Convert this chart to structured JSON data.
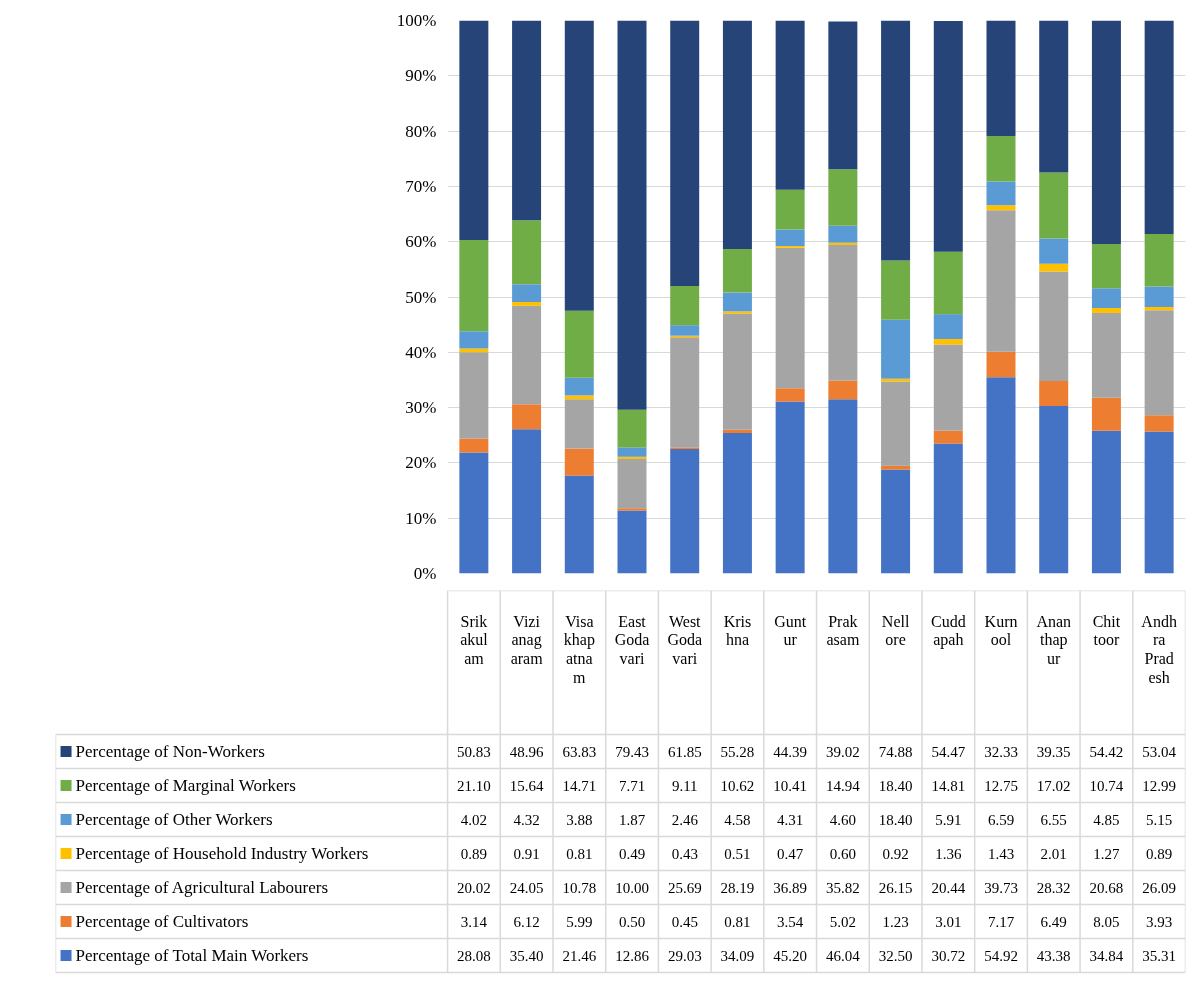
{
  "chart_data": {
    "type": "bar",
    "stacked": true,
    "grid": "y",
    "legend": "bottom",
    "categories": [
      "Srikakulam",
      "Vizianagaram",
      "Visakhapatnam",
      "East Godavari",
      "West Godavari",
      "Krishna",
      "Guntur",
      "Prakasam",
      "Nellore",
      "Cuddapah",
      "Kurnool",
      "Ananthapur",
      "Chittoor",
      "Andhra Pradesh"
    ],
    "ylim": [
      0,
      100
    ],
    "yticks": [
      {
        "value": 0,
        "label": "0%"
      },
      {
        "value": 10,
        "label": "10%"
      },
      {
        "value": 20,
        "label": "20%"
      },
      {
        "value": 30,
        "label": "30%"
      },
      {
        "value": 40,
        "label": "40%"
      },
      {
        "value": 50,
        "label": "50%"
      },
      {
        "value": 60,
        "label": "60%"
      },
      {
        "value": 70,
        "label": "70%"
      },
      {
        "value": 80,
        "label": "80%"
      },
      {
        "value": 90,
        "label": "90%"
      },
      {
        "value": 100,
        "label": "100%"
      }
    ],
    "series": [
      {
        "name": "Percentage of Total Main Workers",
        "color": "#4472c4",
        "values": [
          21.9,
          26.1,
          17.7,
          11.4,
          22.5,
          25.4,
          31.1,
          31.5,
          18.8,
          23.5,
          35.5,
          30.3,
          25.8,
          25.7
        ]
      },
      {
        "name": "Percentage of Cultivators",
        "color": "#ed7d31",
        "values": [
          2.5,
          4.5,
          4.9,
          0.4,
          0.3,
          0.6,
          2.4,
          3.4,
          0.7,
          2.3,
          4.6,
          4.5,
          6.0,
          2.9
        ]
      },
      {
        "name": "Percentage of Agricultural Labourers",
        "color": "#a5a5a5",
        "values": [
          15.6,
          17.8,
          8.9,
          8.9,
          19.9,
          21.0,
          25.4,
          24.5,
          15.2,
          15.6,
          25.6,
          19.8,
          15.3,
          19.0
        ]
      },
      {
        "name": "Percentage of Household Industry Workers",
        "color": "#ffc000",
        "values": [
          0.7,
          0.7,
          0.7,
          0.4,
          0.3,
          0.4,
          0.3,
          0.4,
          0.5,
          1.0,
          0.9,
          1.4,
          0.9,
          0.6
        ]
      },
      {
        "name": "Percentage of Other Workers",
        "color": "#5b9bd5",
        "values": [
          3.1,
          3.2,
          3.2,
          1.7,
          1.9,
          3.4,
          3.0,
          3.1,
          10.7,
          4.5,
          4.3,
          4.6,
          3.6,
          3.7
        ]
      },
      {
        "name": "Percentage of Marginal Workers",
        "color": "#70ad47",
        "values": [
          16.5,
          11.6,
          12.1,
          6.8,
          7.1,
          7.9,
          7.2,
          10.2,
          10.7,
          11.3,
          8.2,
          11.9,
          8.0,
          9.5
        ]
      },
      {
        "name": "Percentage of Non-Workers",
        "color": "#264478",
        "values": [
          39.7,
          36.1,
          52.5,
          70.4,
          48.0,
          41.3,
          30.6,
          26.7,
          43.4,
          41.7,
          20.9,
          27.5,
          40.4,
          38.6
        ]
      }
    ],
    "annotations": [
      "50.83",
      "48.96",
      "63.83",
      "79.43",
      "61.85",
      "55.28",
      "44.39",
      "39.02",
      "74.88",
      "54.47",
      "32.33",
      "39.35",
      "54.42",
      "53.04",
      "21.10",
      "15.64",
      "14.71",
      "7.71",
      "9.11",
      "10.62",
      "10.41",
      "14.94",
      "18.40",
      "14.81",
      "12.75",
      "17.02",
      "10.74",
      "12.99",
      "4.02",
      "4.32",
      "3.88",
      "1.87",
      "2.46",
      "4.58",
      "4.31",
      "4.60",
      "18.40",
      "5.91",
      "6.59",
      "6.55",
      "4.85",
      "5.15",
      "0.89",
      "0.91",
      "0.81",
      "0.49",
      "0.43",
      "0.51",
      "0.47",
      "0.60",
      "0.92",
      "1.36",
      "1.43",
      "2.01",
      "1.27",
      "0.89",
      "20.02",
      "24.05",
      "10.78",
      "10.00",
      "25.69",
      "28.19",
      "36.89",
      "35.82",
      "26.15",
      "20.44",
      "39.73",
      "28.32",
      "20.68",
      "26.09",
      "3.14",
      "6.12",
      "5.99",
      "0.50",
      "0.45",
      "0.81",
      "3.54",
      "5.02",
      "1.23",
      "3.01",
      "7.17",
      "6.49",
      "8.05",
      "3.93",
      "28.08",
      "35.40",
      "21.46",
      "12.86",
      "29.03",
      "34.09",
      "45.20",
      "46.04",
      "32.50",
      "30.72",
      "54.92",
      "43.38",
      "34.84",
      "35.31"
    ]
  }
}
